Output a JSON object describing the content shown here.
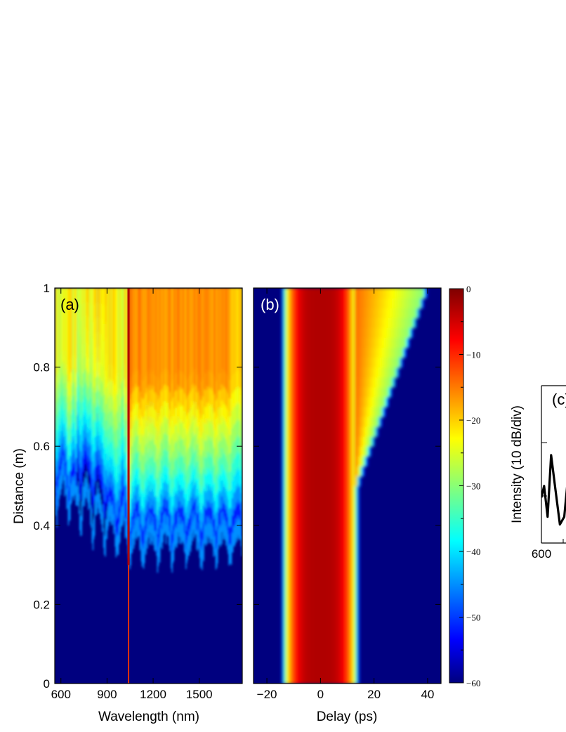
{
  "chart_data": [
    {
      "type": "heatmap",
      "panel": "(a)",
      "xlabel": "Wavelength (nm)",
      "ylabel": "Distance (m)",
      "xlim": [
        560,
        1780
      ],
      "ylim": [
        0,
        1
      ],
      "xticks": [
        600,
        900,
        1200,
        1500
      ],
      "xtick_labels": [
        "600",
        "900",
        "1200",
        "1500"
      ],
      "yticks": [
        0,
        0.2,
        0.4,
        0.6,
        0.8,
        1
      ],
      "ytick_labels": [
        "0",
        "0.2",
        "0.4",
        "0.6",
        "0.8",
        "1"
      ],
      "colorbar_dB": [
        -60,
        0
      ],
      "pump_wavelength_nm": 1040,
      "spectral_broadening_onset_m": 0.3,
      "spectrum_edges_at_1m_nm": [
        560,
        1780
      ]
    },
    {
      "type": "heatmap",
      "panel": "(b)",
      "xlabel": "Delay (ps)",
      "ylabel": "",
      "xlim": [
        -25,
        45
      ],
      "ylim": [
        0,
        1
      ],
      "xticks": [
        -20,
        0,
        20,
        40
      ],
      "xtick_labels": [
        "−20",
        "0",
        "20",
        "40"
      ],
      "colorbar_dB": [
        -60,
        0
      ],
      "pulse_half_width_ps": 13,
      "trailing_edge_start_m": 0.5,
      "trailing_edge_delay_at_1m_ps": 39
    },
    {
      "type": "colorbar",
      "ticks": [
        0,
        -10,
        -20,
        -30,
        -40,
        -50,
        -60
      ],
      "tick_labels": [
        "0",
        "−10",
        "−20",
        "−30",
        "−40",
        "−50",
        "−60"
      ],
      "colormap": "jet",
      "colormap_stops": [
        "#00007f",
        "#0000ff",
        "#00ffff",
        "#ffff00",
        "#ff0000",
        "#7f0000"
      ]
    },
    {
      "type": "line",
      "panel": "(c)",
      "xlabel": "",
      "ylabel": "Intensity (10 dB/div)",
      "xticks_visible": [
        "600"
      ],
      "x_visible": [
        600,
        603,
        607,
        611,
        616,
        621,
        626,
        631
      ],
      "y_visible_dB": [
        -29,
        -26,
        -34,
        -18,
        -27,
        -36,
        -34,
        -22
      ]
    }
  ]
}
